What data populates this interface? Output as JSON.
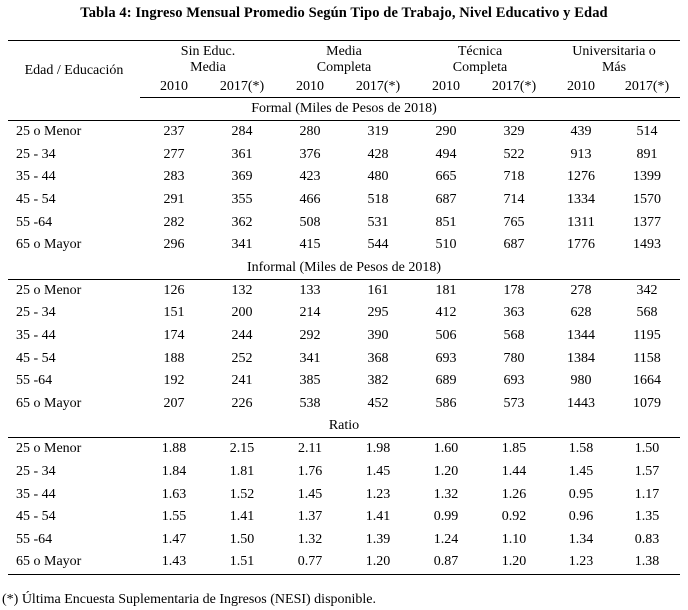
{
  "title": "Tabla 4: Ingreso Mensual Promedio Según Tipo de Trabajo, Nivel Educativo y Edad",
  "row_header": "Edad / Educación",
  "groups": [
    {
      "line1": "Sin Educ.",
      "line2": "Media"
    },
    {
      "line1": "Media",
      "line2": "Completa"
    },
    {
      "line1": "Técnica",
      "line2": "Completa"
    },
    {
      "line1": "Universitaria o",
      "line2": "Más"
    }
  ],
  "years": [
    "2010",
    "2017(*)"
  ],
  "sections": [
    {
      "title": "Formal (Miles de Pesos de 2018)",
      "rows": [
        {
          "label": "25 o Menor",
          "values": [
            "237",
            "284",
            "280",
            "319",
            "290",
            "329",
            "439",
            "514"
          ]
        },
        {
          "label": "25 - 34",
          "values": [
            "277",
            "361",
            "376",
            "428",
            "494",
            "522",
            "913",
            "891"
          ]
        },
        {
          "label": "35 - 44",
          "values": [
            "283",
            "369",
            "423",
            "480",
            "665",
            "718",
            "1276",
            "1399"
          ]
        },
        {
          "label": "45 - 54",
          "values": [
            "291",
            "355",
            "466",
            "518",
            "687",
            "714",
            "1334",
            "1570"
          ]
        },
        {
          "label": "55 -64",
          "values": [
            "282",
            "362",
            "508",
            "531",
            "851",
            "765",
            "1311",
            "1377"
          ]
        },
        {
          "label": "65 o Mayor",
          "values": [
            "296",
            "341",
            "415",
            "544",
            "510",
            "687",
            "1776",
            "1493"
          ]
        }
      ]
    },
    {
      "title": "Informal (Miles de Pesos de 2018)",
      "rows": [
        {
          "label": "25 o Menor",
          "values": [
            "126",
            "132",
            "133",
            "161",
            "181",
            "178",
            "278",
            "342"
          ]
        },
        {
          "label": "25 - 34",
          "values": [
            "151",
            "200",
            "214",
            "295",
            "412",
            "363",
            "628",
            "568"
          ]
        },
        {
          "label": "35 - 44",
          "values": [
            "174",
            "244",
            "292",
            "390",
            "506",
            "568",
            "1344",
            "1195"
          ]
        },
        {
          "label": "45 - 54",
          "values": [
            "188",
            "252",
            "341",
            "368",
            "693",
            "780",
            "1384",
            "1158"
          ]
        },
        {
          "label": "55 -64",
          "values": [
            "192",
            "241",
            "385",
            "382",
            "689",
            "693",
            "980",
            "1664"
          ]
        },
        {
          "label": "65 o Mayor",
          "values": [
            "207",
            "226",
            "538",
            "452",
            "586",
            "573",
            "1443",
            "1079"
          ]
        }
      ]
    },
    {
      "title": "Ratio",
      "rows": [
        {
          "label": "25 o Menor",
          "values": [
            "1.88",
            "2.15",
            "2.11",
            "1.98",
            "1.60",
            "1.85",
            "1.58",
            "1.50"
          ]
        },
        {
          "label": "25 - 34",
          "values": [
            "1.84",
            "1.81",
            "1.76",
            "1.45",
            "1.20",
            "1.44",
            "1.45",
            "1.57"
          ]
        },
        {
          "label": "35 - 44",
          "values": [
            "1.63",
            "1.52",
            "1.45",
            "1.23",
            "1.32",
            "1.26",
            "0.95",
            "1.17"
          ]
        },
        {
          "label": "45 - 54",
          "values": [
            "1.55",
            "1.41",
            "1.37",
            "1.41",
            "0.99",
            "0.92",
            "0.96",
            "1.35"
          ]
        },
        {
          "label": "55 -64",
          "values": [
            "1.47",
            "1.50",
            "1.32",
            "1.39",
            "1.24",
            "1.10",
            "1.34",
            "0.83"
          ]
        },
        {
          "label": "65 o Mayor",
          "values": [
            "1.43",
            "1.51",
            "0.77",
            "1.20",
            "0.87",
            "1.20",
            "1.23",
            "1.38"
          ]
        }
      ]
    }
  ],
  "footnote": "(*) Última Encuesta Suplementaria de Ingresos (NESI) disponible."
}
